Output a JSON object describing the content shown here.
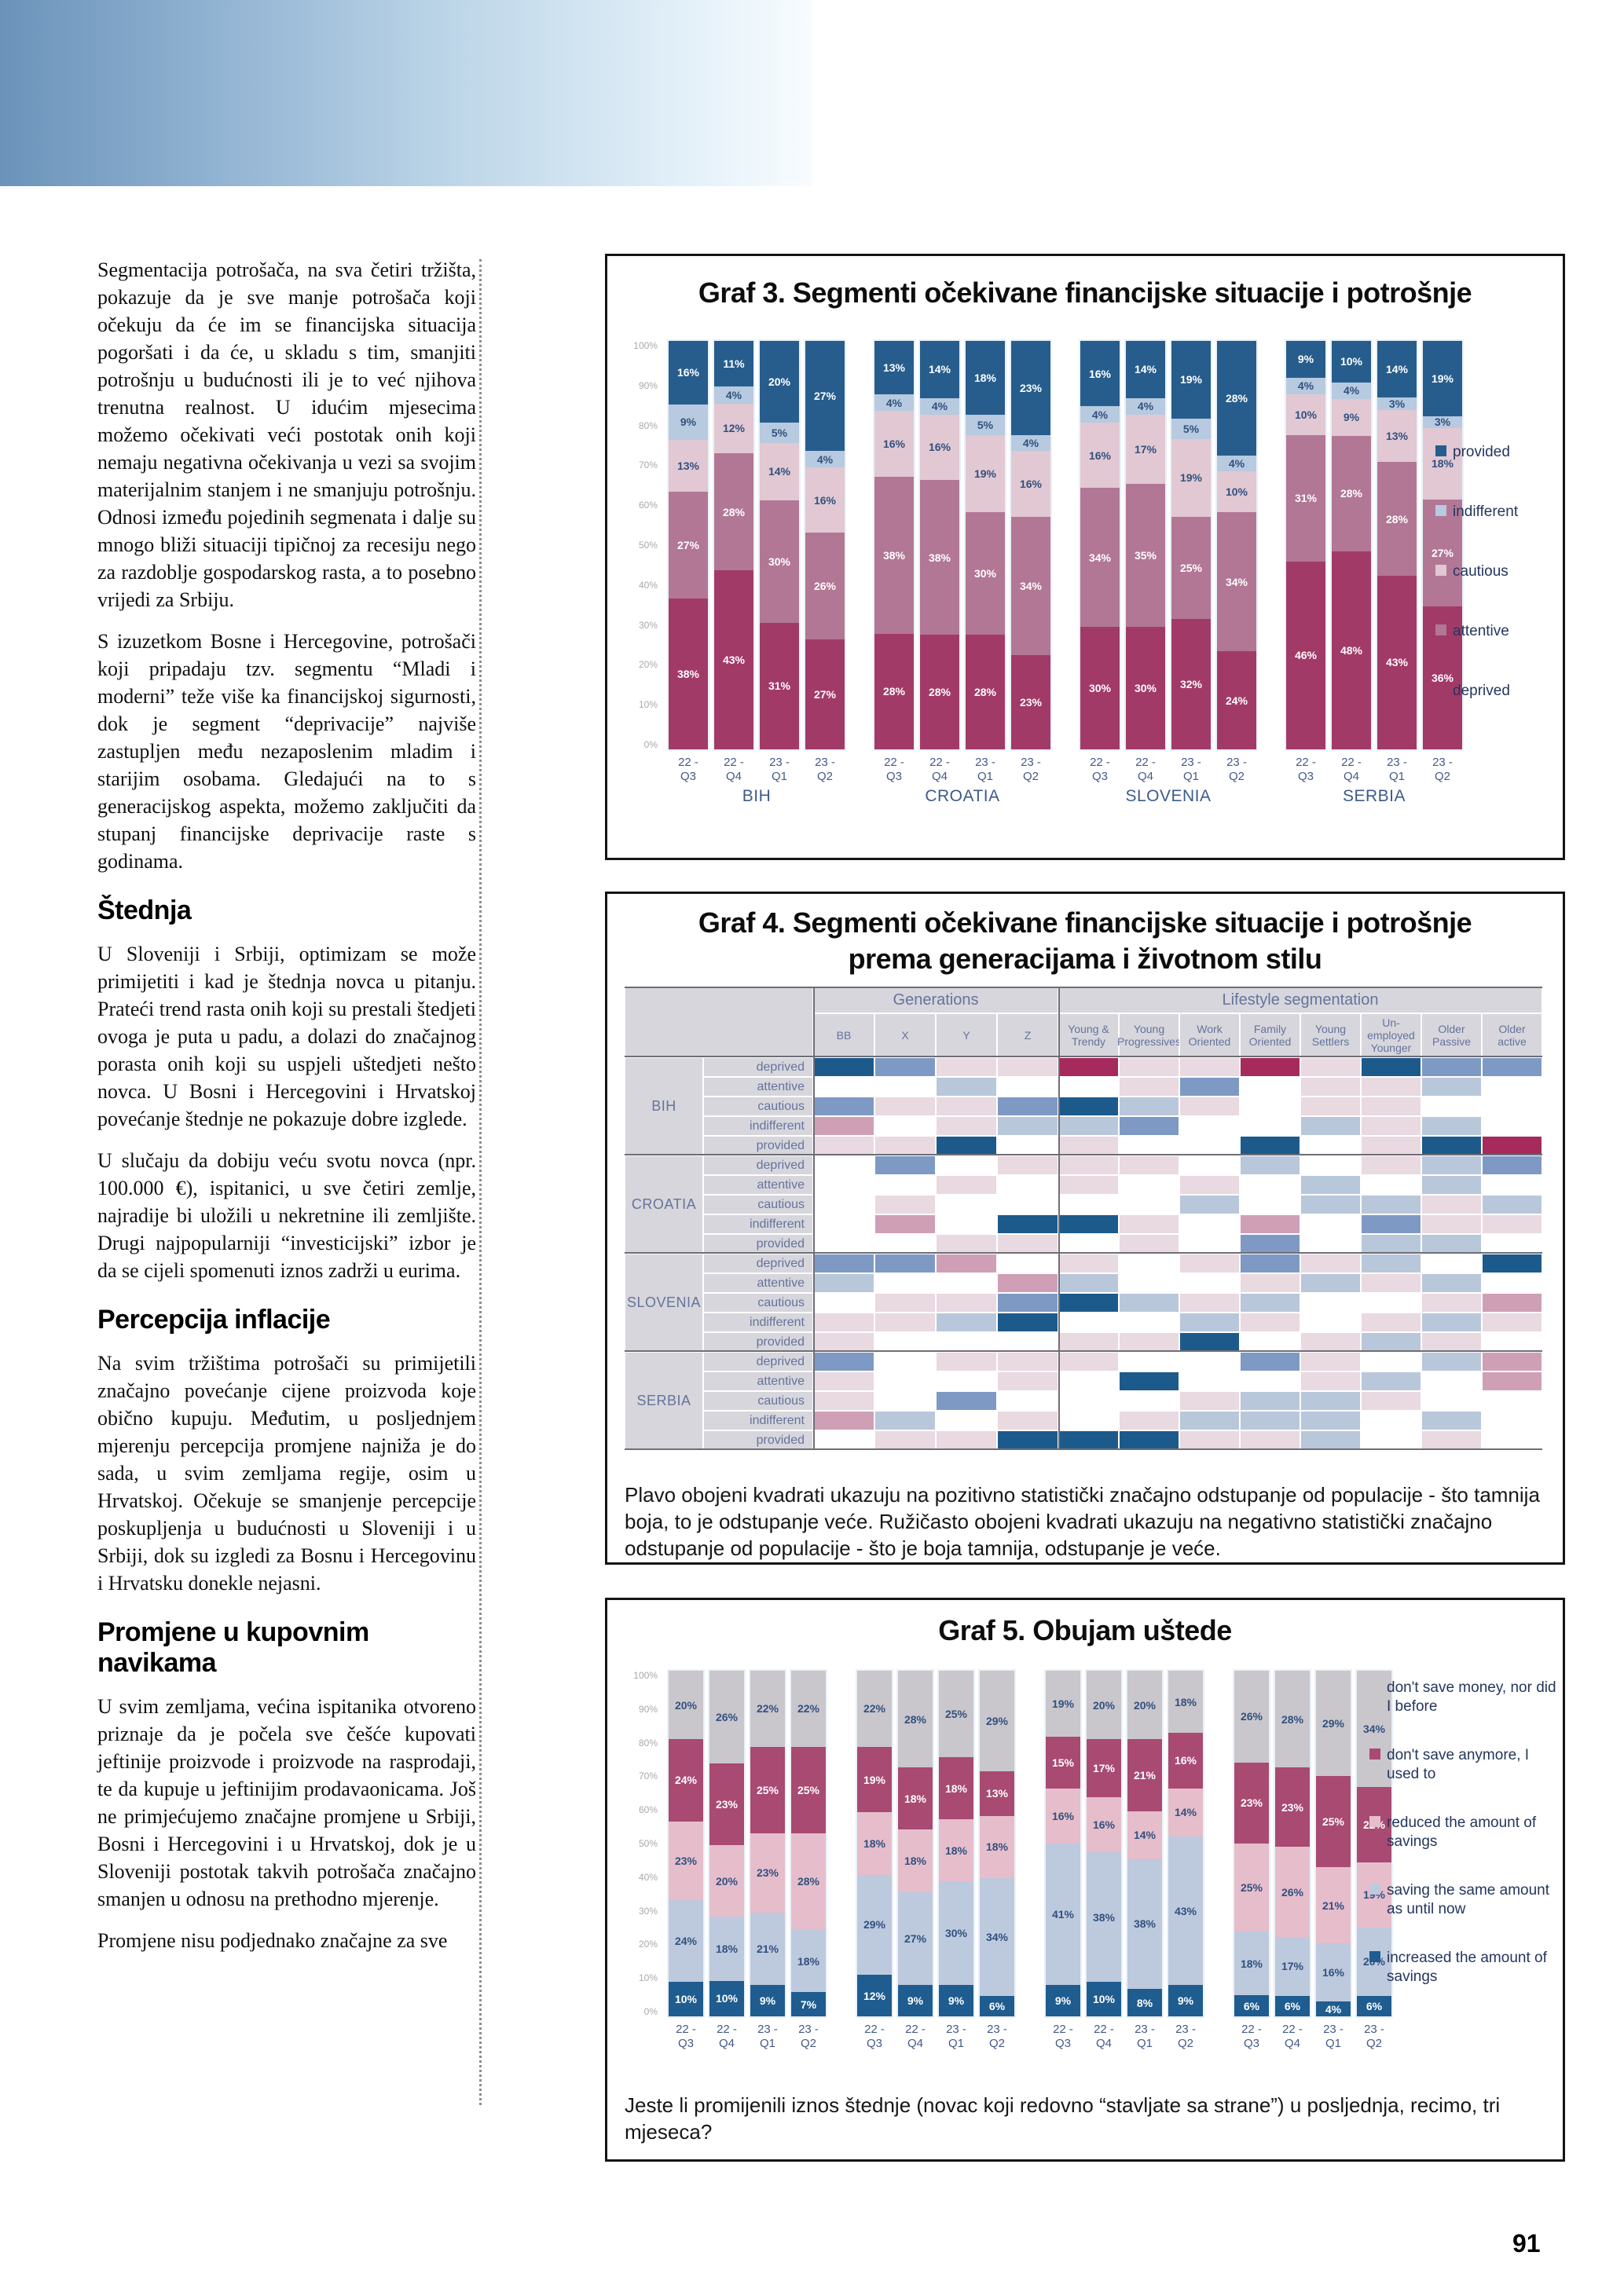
{
  "page": {
    "number": "91"
  },
  "left_column": {
    "paragraph_1": "Segmentacija potrošača, na sva četiri tržišta, pokazuje da je sve manje potrošača koji očekuju da će im se financijska situacija pogoršati i da će, u skladu s tim, smanjiti potrošnju u budućnosti ili je to već njihova trenutna realnost. U idućim mjesecima možemo očekivati veći postotak onih koji nemaju negativna očekivanja u vezi sa svojim materijalnim stanjem i ne smanjuju potrošnju. Odnosi između pojedinih segmenata i dalje su mnogo bliži situaciji tipičnoj za recesiju nego za razdoblje gospodarskog rasta, a to posebno vrijedi za Srbiju.",
    "paragraph_2": "S izuzetkom Bosne i Hercegovine, potrošači koji pripadaju tzv. segmentu “Mladi i moderni” teže više ka financijskoj sigurnosti, dok je segment “deprivacije” najviše zastupljen među nezaposlenim mladim i starijim osobama. Gledajući na to s generacijskog aspekta, možemo zaključiti da stupanj financijske deprivacije raste s godinama.",
    "heading_stednja": "Štednja",
    "paragraph_3": "U Sloveniji i Srbiji, optimizam se može primijetiti i kad je štednja novca u pitanju. Prateći trend rasta onih koji su prestali štedjeti ovoga je puta u padu, a dolazi do značajnog porasta onih koji su uspjeli uštedjeti nešto novca. U Bosni i Hercegovini i Hrvatskoj povećanje štednje ne pokazuje dobre izglede.",
    "paragraph_4": "U slučaju da dobiju veću svotu novca (npr. 100.000 €), ispitanici, u sve četiri zemlje, najradije bi uložili u nekretnine ili zemljište. Drugi najpopularniji “investicijski” izbor je da se cijeli spomenuti iznos zadrži u eurima.",
    "heading_inflacija": "Percepcija inflacije",
    "paragraph_5": "Na svim tržištima potrošači su primijetili značajno povećanje cijene proizvoda koje obično kupuju. Međutim, u posljednjem mjerenju percepcija promjene najniža je do sada, u svim zemljama regije, osim u Hrvatskoj. Očekuje se smanjenje percepcije poskupljenja u budućnosti u Sloveniji i u Srbiji, dok su izgledi za Bosnu i Hercegovinu i Hrvatsku donekle nejasni.",
    "heading_navike": "Promjene u kupovnim navikama",
    "paragraph_6": "U svim zemljama, većina ispitanika otvoreno priznaje da je počela sve češće kupovati jeftinije proizvode i proizvode na rasprodaji, te da kupuje u jeftinijim prodavaonicama. Još ne primjećujemo značajne promjene u Srbiji, Bosni i Hercegovini i u Hrvatskoj, dok je u Sloveniji postotak takvih potrošača značajno smanjen u odnosu na prethodno mjerenje.",
    "paragraph_7": "Promjene nisu podjednako značajne za sve"
  },
  "chart_data": [
    {
      "id": "graf3",
      "type": "bar",
      "stacked": true,
      "title": "Graf 3. Segmenti očekivane financijske situacije i potrošnje",
      "groups": [
        "BIH",
        "CROATIA",
        "SLOVENIA",
        "SERBIA"
      ],
      "categories": [
        "22 - Q3",
        "22 - Q4",
        "23 - Q1",
        "23 - Q2"
      ],
      "ylim": [
        0,
        100
      ],
      "yticks": [
        "100%",
        "90%",
        "80%",
        "70%",
        "60%",
        "50%",
        "40%",
        "30%",
        "20%",
        "10%",
        "0%"
      ],
      "series_order": "top to bottom in each bar",
      "series": [
        {
          "name": "provided",
          "color": "#265d8d",
          "label_color": "#ffffff"
        },
        {
          "name": "indifferent",
          "color": "#b7cadf",
          "label_color": "#31517f"
        },
        {
          "name": "cautious",
          "color": "#e1c8d3",
          "label_color": "#31517f"
        },
        {
          "name": "attentive",
          "color": "#b27795",
          "label_color": "#ffffff"
        },
        {
          "name": "deprived",
          "color": "#a23a68",
          "label_color": "#ffffff"
        }
      ],
      "values": {
        "BIH": [
          [
            16,
            9,
            13,
            27,
            38
          ],
          [
            11,
            4,
            12,
            28,
            43
          ],
          [
            20,
            5,
            14,
            30,
            31
          ],
          [
            27,
            4,
            16,
            26,
            27
          ]
        ],
        "CROATIA": [
          [
            13,
            4,
            16,
            38,
            28
          ],
          [
            14,
            4,
            16,
            38,
            28
          ],
          [
            18,
            5,
            19,
            30,
            28
          ],
          [
            23,
            4,
            16,
            34,
            23
          ]
        ],
        "SLOVENIA": [
          [
            16,
            4,
            16,
            34,
            30
          ],
          [
            14,
            4,
            17,
            35,
            30
          ],
          [
            19,
            5,
            19,
            25,
            32
          ],
          [
            28,
            4,
            10,
            34,
            24
          ]
        ],
        "SERBIA": [
          [
            9,
            4,
            10,
            31,
            46
          ],
          [
            10,
            4,
            9,
            28,
            48
          ],
          [
            14,
            3,
            13,
            28,
            43
          ],
          [
            19,
            3,
            18,
            27,
            36
          ]
        ]
      }
    },
    {
      "id": "graf4",
      "type": "heatmap",
      "title_line1": "Graf 4. Segmenti očekivane financijske situacije i potrošnje",
      "title_line2": "prema generacijama i životnom stilu",
      "col_group_headers": [
        "Generations",
        "Lifestyle segmentation"
      ],
      "generation_columns": [
        "BB",
        "X",
        "Y",
        "Z"
      ],
      "lifestyle_columns": [
        "Young & Trendy",
        "Young Progressives",
        "Work Oriented",
        "Family Oriented",
        "Young Settlers",
        "Un-employed Younger",
        "Older Passive",
        "Older active"
      ],
      "row_groups": [
        "BIH",
        "CROATIA",
        "SLOVENIA",
        "SERBIA"
      ],
      "row_labels": [
        "deprived",
        "attentive",
        "cautious",
        "indifferent",
        "provided"
      ],
      "scale_note": "cell values -3..3: positive = blue = statistically significant positive deviation from population (darker = larger), negative = pink/red = negative deviation, 0 = none",
      "palette": {
        "-3": "#a62a5c",
        "-2": "#cf9fb6",
        "-1": "#e9d9e0",
        "0": "#ffffff",
        "1": "#b9c7db",
        "2": "#7e9ac4",
        "3": "#1d5a8c"
      },
      "cells": {
        "BIH": [
          [
            3,
            2,
            -1,
            -1,
            -3,
            -1,
            -1,
            -3,
            -1,
            3,
            2,
            2
          ],
          [
            0,
            0,
            1,
            0,
            0,
            -1,
            2,
            0,
            -1,
            -1,
            1,
            0
          ],
          [
            2,
            -1,
            -1,
            2,
            3,
            1,
            -1,
            0,
            -1,
            -1,
            0,
            0
          ],
          [
            -2,
            0,
            -1,
            1,
            1,
            2,
            0,
            0,
            1,
            -1,
            1,
            0
          ],
          [
            -1,
            -1,
            3,
            0,
            -1,
            0,
            0,
            3,
            0,
            -1,
            3,
            -3
          ]
        ],
        "CROATIA": [
          [
            0,
            2,
            0,
            -1,
            -1,
            -1,
            0,
            1,
            0,
            -1,
            1,
            2
          ],
          [
            0,
            0,
            -1,
            0,
            -1,
            0,
            -1,
            0,
            1,
            0,
            1,
            0
          ],
          [
            0,
            -1,
            0,
            0,
            0,
            0,
            1,
            0,
            1,
            1,
            -1,
            1
          ],
          [
            0,
            -2,
            0,
            3,
            3,
            -1,
            0,
            -2,
            0,
            2,
            -1,
            -1
          ],
          [
            0,
            0,
            -1,
            -1,
            0,
            -1,
            0,
            2,
            0,
            1,
            1,
            0
          ]
        ],
        "SLOVENIA": [
          [
            2,
            2,
            -2,
            0,
            -1,
            0,
            -1,
            2,
            -1,
            1,
            0,
            3
          ],
          [
            1,
            0,
            0,
            -2,
            1,
            0,
            0,
            -1,
            1,
            -1,
            1,
            0
          ],
          [
            0,
            -1,
            -1,
            2,
            3,
            1,
            -1,
            1,
            0,
            0,
            -1,
            -2
          ],
          [
            -1,
            -1,
            1,
            3,
            0,
            0,
            1,
            -1,
            0,
            -1,
            1,
            -1
          ],
          [
            -1,
            0,
            0,
            0,
            -1,
            -1,
            3,
            0,
            -1,
            1,
            -1,
            0
          ]
        ],
        "SERBIA": [
          [
            2,
            0,
            -1,
            -1,
            -1,
            0,
            0,
            2,
            -1,
            0,
            1,
            -2
          ],
          [
            -1,
            0,
            0,
            -1,
            0,
            3,
            0,
            0,
            -1,
            1,
            0,
            -2
          ],
          [
            -1,
            0,
            2,
            0,
            0,
            0,
            -1,
            1,
            1,
            -1,
            0,
            0
          ],
          [
            -2,
            1,
            0,
            -1,
            0,
            -1,
            1,
            1,
            1,
            0,
            1,
            0
          ],
          [
            0,
            -1,
            -1,
            3,
            3,
            3,
            -1,
            -1,
            1,
            0,
            -1,
            0
          ]
        ]
      },
      "caption": "Plavo obojeni kvadrati ukazuju na pozitivno statistički značajno odstupanje od populacije - što tamnija boja, to je odstupanje veće. Ružičasto obojeni kvadrati ukazuju na negativno statistički značajno odstupanje od populacije - što je boja tamnija, odstupanje je veće."
    },
    {
      "id": "graf5",
      "type": "bar",
      "stacked": true,
      "title": "Graf 5. Obujam uštede",
      "groups": [
        "BIH",
        "CROATIA",
        "SLOVENIA",
        "SERBIA"
      ],
      "categories": [
        "22 - Q3",
        "22 - Q4",
        "23 - Q1",
        "23 - Q2"
      ],
      "ylim": [
        0,
        100
      ],
      "yticks": [
        "100%",
        "90%",
        "80%",
        "70%",
        "60%",
        "50%",
        "40%",
        "30%",
        "20%",
        "10%",
        "0%"
      ],
      "series_order": "top to bottom in each bar",
      "series": [
        {
          "name": "don't save money, nor did I before",
          "color": "#c9c6cc",
          "label_color": "#31517f"
        },
        {
          "name": "don't save anymore, I used to",
          "color": "#a84a72",
          "label_color": "#ffffff"
        },
        {
          "name": "reduced the amount of savings",
          "color": "#e6bdcb",
          "label_color": "#31517f"
        },
        {
          "name": "saving the same amount as until now",
          "color": "#bdc9dd",
          "label_color": "#31517f"
        },
        {
          "name": "increased the amount of savings",
          "color": "#1f5c8f",
          "label_color": "#ffffff"
        }
      ],
      "values": {
        "BIH": [
          [
            20,
            24,
            23,
            24,
            10
          ],
          [
            26,
            23,
            20,
            18,
            10
          ],
          [
            22,
            25,
            23,
            21,
            9
          ],
          [
            22,
            25,
            28,
            18,
            7
          ]
        ],
        "CROATIA": [
          [
            22,
            19,
            18,
            29,
            12
          ],
          [
            28,
            18,
            18,
            27,
            9
          ],
          [
            25,
            18,
            18,
            30,
            9
          ],
          [
            29,
            13,
            18,
            34,
            6
          ]
        ],
        "SLOVENIA": [
          [
            19,
            15,
            16,
            41,
            9
          ],
          [
            20,
            17,
            16,
            38,
            10
          ],
          [
            20,
            21,
            14,
            38,
            8
          ],
          [
            18,
            16,
            14,
            43,
            9
          ]
        ],
        "SERBIA": [
          [
            26,
            23,
            25,
            18,
            6
          ],
          [
            28,
            23,
            26,
            17,
            6
          ],
          [
            29,
            25,
            21,
            16,
            4
          ],
          [
            34,
            22,
            19,
            20,
            6
          ]
        ]
      },
      "caption": "Jeste li promijenili iznos štednje (novac koji redovno “stavljate sa strane”) u posljednja, recimo, tri mjeseca?"
    }
  ]
}
